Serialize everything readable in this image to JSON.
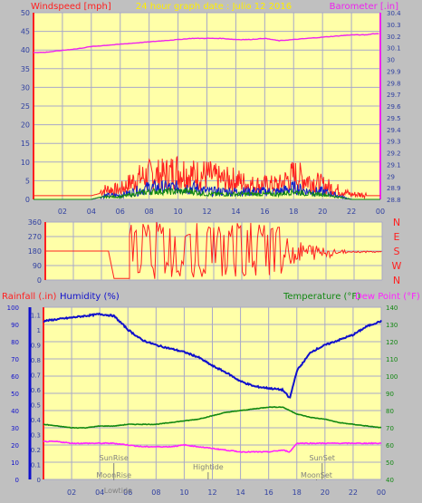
{
  "colors": {
    "background": "#c0c0c0",
    "plot_bg": "#ffffa8",
    "grid": "#a8a8c8",
    "wind": "#ff2020",
    "baro": "#ee22ee",
    "humidity": "#1010cc",
    "temperature": "#118811",
    "dewpoint": "#ff22ff",
    "rain": "#ff2020",
    "sun_moon": "#808080",
    "title": "#ffee00"
  },
  "header": {
    "wind_label": "Windspeed [mph]",
    "title": "24 hour graph date : Julio 12 2016",
    "baro_label": "Barometer [.in]"
  },
  "lower_header": {
    "rain_label": "Rainfall (.in)",
    "humidity_label": "Humidity (%)",
    "temp_label": "Temperature (°F)",
    "dew_label": "Dew Point (°F)"
  },
  "axes": {
    "x_ticks": [
      "02",
      "04",
      "06",
      "08",
      "10",
      "12",
      "14",
      "16",
      "18",
      "20",
      "22",
      "00"
    ],
    "wind_ticks": [
      "0",
      "5",
      "10",
      "15",
      "20",
      "25",
      "30",
      "35",
      "40",
      "45",
      "50"
    ],
    "baro_ticks": [
      "28.8",
      "28.9",
      "29",
      "29.1",
      "29.2",
      "29.3",
      "29.4",
      "29.5",
      "29.6",
      "29.7",
      "29.8",
      "29.9",
      "30",
      "30.1",
      "30.2",
      "30.3",
      "30.4"
    ],
    "dir_ticks": [
      "0",
      "90",
      "180",
      "270",
      "360"
    ],
    "compass": [
      "N",
      "W",
      "S",
      "E",
      "N"
    ],
    "humidity_ticks": [
      "0",
      "10",
      "20",
      "30",
      "40",
      "50",
      "60",
      "70",
      "80",
      "90",
      "100"
    ],
    "rain_ticks": [
      "0",
      "0.1",
      "0.2",
      "0.3",
      "0.4",
      "0.5",
      "0.6",
      "0.7",
      "0.8",
      "0.9",
      "1",
      "1.1"
    ],
    "temp_ticks": [
      "40",
      "50",
      "60",
      "70",
      "80",
      "90",
      "100",
      "110",
      "120",
      "130",
      "140"
    ]
  },
  "annotations": {
    "sunrise": "SunRise",
    "moonrise": "MoonRise",
    "lowtide": "Lowtide",
    "hightide": "Hightide",
    "sunset": "SunSet",
    "moonset": "MoonSet"
  },
  "chart_data": [
    {
      "type": "line",
      "title": "24 hour graph date : Julio 12 2016",
      "xlabel": "",
      "x": [
        0,
        0.8,
        1.5,
        2.2,
        3,
        4,
        5,
        6,
        7,
        8,
        9,
        10,
        11,
        12,
        13,
        14,
        15,
        16,
        17,
        18,
        19,
        20,
        21,
        22,
        23,
        23.5,
        24
      ],
      "xlim": [
        0,
        24
      ],
      "ylabel": "Windspeed [mph]",
      "ylim": [
        0,
        50
      ],
      "y2label": "Barometer [.in]",
      "y2lim": [
        28.8,
        30.4
      ],
      "series": [
        {
          "name": "Windspeed [mph]",
          "axis": "left",
          "values": [
            1,
            1,
            1,
            1,
            1,
            1,
            2,
            2,
            4,
            5,
            5,
            6,
            5,
            5,
            4,
            4,
            3,
            3,
            3,
            5,
            4,
            3,
            2,
            1,
            1,
            1,
            1
          ]
        },
        {
          "name": "Windspeed [mph]",
          "axis": "left",
          "values": [
            0,
            0,
            0,
            0,
            0,
            0,
            1,
            1,
            2,
            3,
            3,
            3,
            3,
            2,
            2,
            2,
            2,
            2,
            2,
            3,
            2,
            2,
            1,
            0,
            0,
            0,
            0
          ]
        },
        {
          "name": "Barometer [.in]",
          "axis": "right",
          "values": [
            30.06,
            30.06,
            30.07,
            30.08,
            30.09,
            30.11,
            30.12,
            30.13,
            30.14,
            30.15,
            30.16,
            30.17,
            30.18,
            30.18,
            30.18,
            30.17,
            30.17,
            30.18,
            30.16,
            30.17,
            30.18,
            30.19,
            30.2,
            30.21,
            30.21,
            30.22,
            30.22
          ]
        }
      ]
    },
    {
      "type": "line",
      "xlabel": "",
      "ylabel": "",
      "ylim": [
        0,
        360
      ],
      "x": [
        0,
        4.5,
        5,
        5.5,
        6,
        7,
        8,
        9,
        10,
        11,
        12,
        13,
        14,
        15,
        16,
        17,
        18,
        19,
        20,
        21,
        22,
        23,
        24
      ],
      "series": [
        {
          "name": "",
          "values": [
            180,
            180,
            180,
            10,
            10,
            20,
            60,
            300,
            120,
            300,
            200,
            320,
            100,
            300,
            120,
            220,
            250,
            200,
            150,
            175,
            170,
            175,
            175
          ]
        }
      ],
      "note_range": "Wind direction fluctuates rapidly between roughly 10 and 360 degrees from about 06 to 17, then settles near 180."
    },
    {
      "type": "line",
      "xlabel": "",
      "xlim": [
        0,
        24
      ],
      "ylabel": "Humidity (%)",
      "ylim": [
        0,
        100
      ],
      "y2label": "Temperature (°F)",
      "y2lim": [
        40,
        140
      ],
      "x": [
        0,
        1,
        2,
        3,
        4,
        5,
        6,
        7,
        8,
        9,
        10,
        11,
        12,
        13,
        14,
        15,
        16,
        17,
        17.5,
        18,
        19,
        20,
        21,
        22,
        23,
        24
      ],
      "series": [
        {
          "name": "Humidity (%)",
          "axis": "left",
          "values": [
            92,
            93,
            94,
            95,
            96,
            95,
            87,
            81,
            78,
            76,
            74,
            71,
            66,
            62,
            57,
            54,
            53,
            52,
            47,
            63,
            74,
            78,
            81,
            84,
            89,
            92
          ]
        },
        {
          "name": "Temperature (°F)",
          "axis": "right",
          "values": [
            72,
            71,
            70,
            70,
            71,
            71,
            72,
            72,
            72,
            73,
            74,
            75,
            77,
            79,
            80,
            81,
            82,
            82,
            80,
            78,
            76,
            75,
            73,
            72,
            71,
            70
          ]
        },
        {
          "name": "Dew Point (°F)",
          "axis": "right",
          "values": [
            62,
            62,
            61,
            61,
            61,
            61,
            60,
            59,
            59,
            59,
            60,
            59,
            58,
            57,
            56,
            56,
            56,
            57,
            56,
            61,
            61,
            61,
            61,
            61,
            61,
            61
          ]
        }
      ]
    }
  ]
}
